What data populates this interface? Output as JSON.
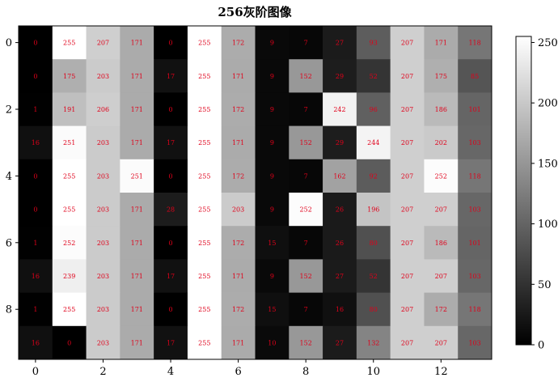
{
  "chart_data": {
    "type": "heatmap",
    "title": "256灰阶图像",
    "colormap": "gray",
    "value_range": [
      0,
      255
    ],
    "grid": false,
    "values": [
      [
        0,
        255,
        207,
        171,
        0,
        255,
        172,
        9,
        7,
        27,
        93,
        207,
        171,
        118
      ],
      [
        0,
        175,
        203,
        171,
        17,
        255,
        171,
        9,
        152,
        29,
        52,
        207,
        175,
        85
      ],
      [
        1,
        191,
        206,
        171,
        0,
        255,
        172,
        9,
        7,
        242,
        96,
        207,
        186,
        101
      ],
      [
        16,
        251,
        203,
        171,
        17,
        255,
        171,
        9,
        152,
        29,
        244,
        207,
        202,
        103
      ],
      [
        0,
        255,
        203,
        251,
        0,
        255,
        172,
        9,
        7,
        162,
        92,
        207,
        252,
        118
      ],
      [
        0,
        255,
        203,
        171,
        28,
        255,
        203,
        9,
        252,
        26,
        196,
        207,
        207,
        103
      ],
      [
        1,
        252,
        203,
        171,
        0,
        255,
        172,
        15,
        7,
        26,
        80,
        207,
        186,
        101
      ],
      [
        16,
        239,
        203,
        171,
        17,
        255,
        171,
        9,
        152,
        27,
        52,
        207,
        207,
        103
      ],
      [
        1,
        255,
        203,
        171,
        0,
        255,
        172,
        15,
        7,
        16,
        80,
        207,
        172,
        118
      ],
      [
        16,
        0,
        203,
        171,
        17,
        255,
        171,
        10,
        152,
        27,
        132,
        207,
        207,
        103
      ]
    ],
    "x_ticks": [
      "0",
      "2",
      "4",
      "6",
      "8",
      "10",
      "12"
    ],
    "y_ticks": [
      "0",
      "2",
      "4",
      "6",
      "8"
    ],
    "colorbar_ticks": [
      "0",
      "50",
      "100",
      "150",
      "200",
      "250"
    ],
    "colors": {
      "label": "#e0001a"
    }
  }
}
